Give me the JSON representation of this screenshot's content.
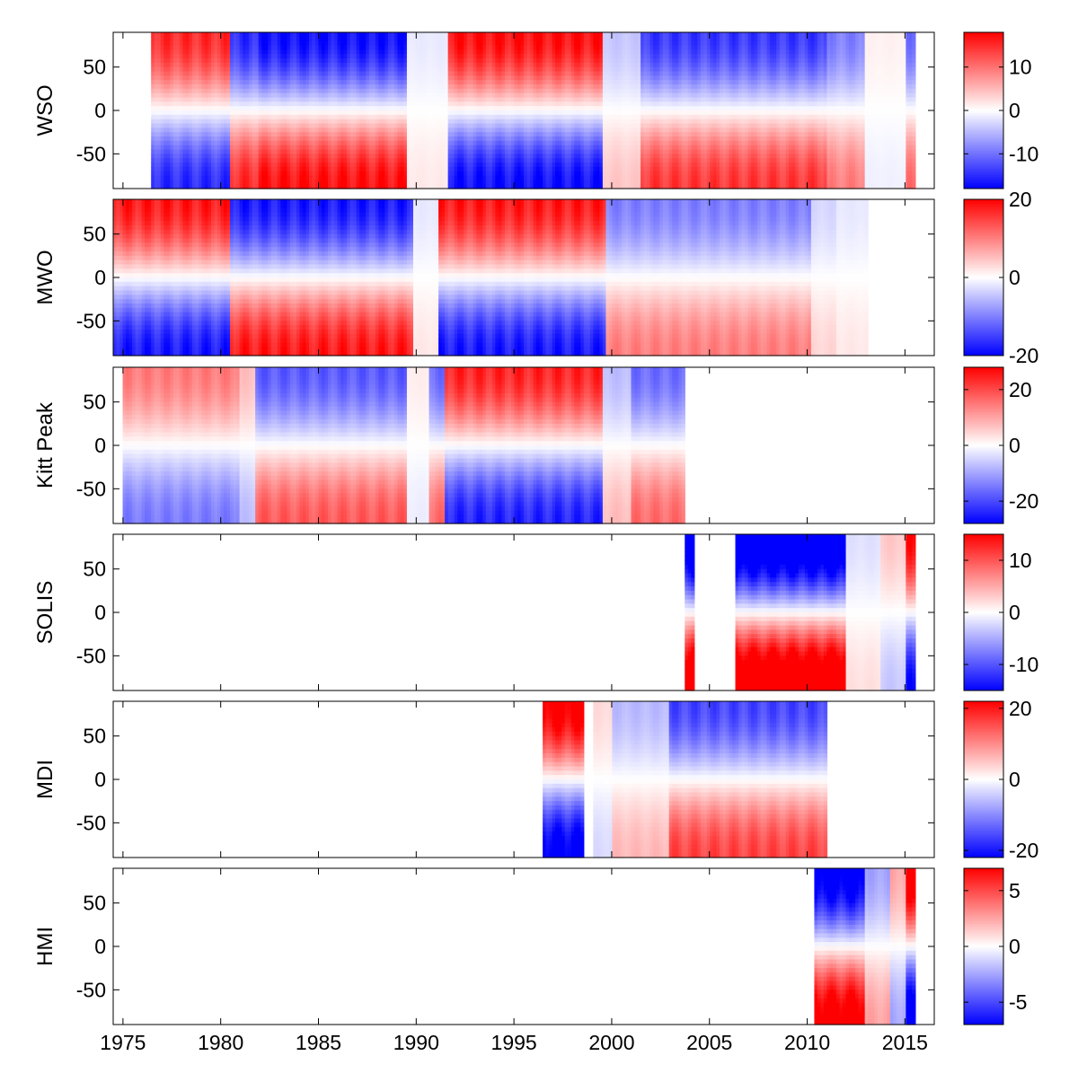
{
  "chart_data": {
    "type": "heatmap",
    "description_axis": "time vs latitude",
    "x_ticks": [
      1975,
      1980,
      1985,
      1990,
      1995,
      2000,
      2005,
      2010,
      2015
    ],
    "xlim": [
      1974.5,
      2016.5
    ],
    "y_ticks": [
      50,
      0,
      -50
    ],
    "ylim": [
      -90,
      90
    ],
    "colormap": {
      "negative": "#0000ff",
      "zero": "#ffffff",
      "positive": "#ff0000"
    },
    "panels": [
      {
        "name": "WSO",
        "clim": [
          -18,
          18
        ],
        "colorbar_ticks": [
          10,
          0,
          -10
        ],
        "coverage": [
          1976.4,
          2015.6
        ],
        "gaps": [],
        "segments": [
          [
            1976.4,
            1,
            15
          ],
          [
            1980.4,
            -1,
            15
          ],
          [
            1982.0,
            -1,
            17
          ],
          [
            1989.5,
            -0.3,
            5
          ],
          [
            1991.7,
            1,
            17
          ],
          [
            1999.6,
            -0.4,
            10
          ],
          [
            2001.5,
            -1,
            14
          ],
          [
            2011.0,
            -1,
            9
          ],
          [
            2013.0,
            0.2,
            5
          ],
          [
            2015.0,
            -1,
            10
          ]
        ]
      },
      {
        "name": "MWO",
        "clim": [
          -20,
          20
        ],
        "colorbar_ticks": [
          20,
          0,
          -20
        ],
        "coverage": [
          1974.5,
          2013.1
        ],
        "gaps": [],
        "segments": [
          [
            1974.5,
            1,
            18
          ],
          [
            1980.5,
            -1,
            18
          ],
          [
            1989.8,
            -0.3,
            6
          ],
          [
            1991.2,
            1,
            18
          ],
          [
            1999.7,
            -1,
            10
          ],
          [
            2010.2,
            -0.4,
            8
          ],
          [
            2011.5,
            -0.3,
            6
          ]
        ]
      },
      {
        "name": "Kitt Peak",
        "clim": [
          -28,
          28
        ],
        "colorbar_ticks": [
          20,
          0,
          -20
        ],
        "coverage": [
          1975.0,
          2003.8
        ],
        "gaps": [],
        "segments": [
          [
            1975.0,
            0.9,
            16
          ],
          [
            1981.0,
            0.5,
            14
          ],
          [
            1981.7,
            -1,
            18
          ],
          [
            1989.5,
            0.2,
            10
          ],
          [
            1990.7,
            -1,
            16
          ],
          [
            1991.4,
            1,
            24
          ],
          [
            1999.5,
            -0.6,
            12
          ],
          [
            2001.0,
            -1,
            16
          ]
        ]
      },
      {
        "name": "SOLIS",
        "clim": [
          -15,
          15
        ],
        "colorbar_ticks": [
          10,
          0,
          -10
        ],
        "coverage": [
          2003.7,
          2015.6
        ],
        "gaps": [
          2004.2,
          2006.3
        ],
        "segments": [
          [
            2003.7,
            -1,
            20
          ],
          [
            2012.0,
            -0.3,
            6
          ],
          [
            2013.8,
            0.4,
            8
          ],
          [
            2015.1,
            1,
            14
          ]
        ]
      },
      {
        "name": "MDI",
        "clim": [
          -22,
          22
        ],
        "colorbar_ticks": [
          20,
          0,
          -20
        ],
        "coverage": [
          1996.5,
          2011.0
        ],
        "gaps": [
          1998.6,
          1999.1
        ],
        "segments": [
          [
            1996.5,
            1,
            24
          ],
          [
            1998.7,
            0.4,
            8
          ],
          [
            2000.0,
            -0.6,
            10
          ],
          [
            2003.0,
            -1,
            16
          ]
        ]
      },
      {
        "name": "HMI",
        "clim": [
          -7,
          7
        ],
        "colorbar_ticks": [
          5,
          0,
          -5
        ],
        "coverage": [
          2010.4,
          2015.6
        ],
        "gaps": [],
        "segments": [
          [
            2010.4,
            -1,
            8
          ],
          [
            2013.0,
            -0.5,
            5
          ],
          [
            2014.2,
            0.4,
            6
          ],
          [
            2015.0,
            1,
            8
          ]
        ]
      }
    ]
  }
}
